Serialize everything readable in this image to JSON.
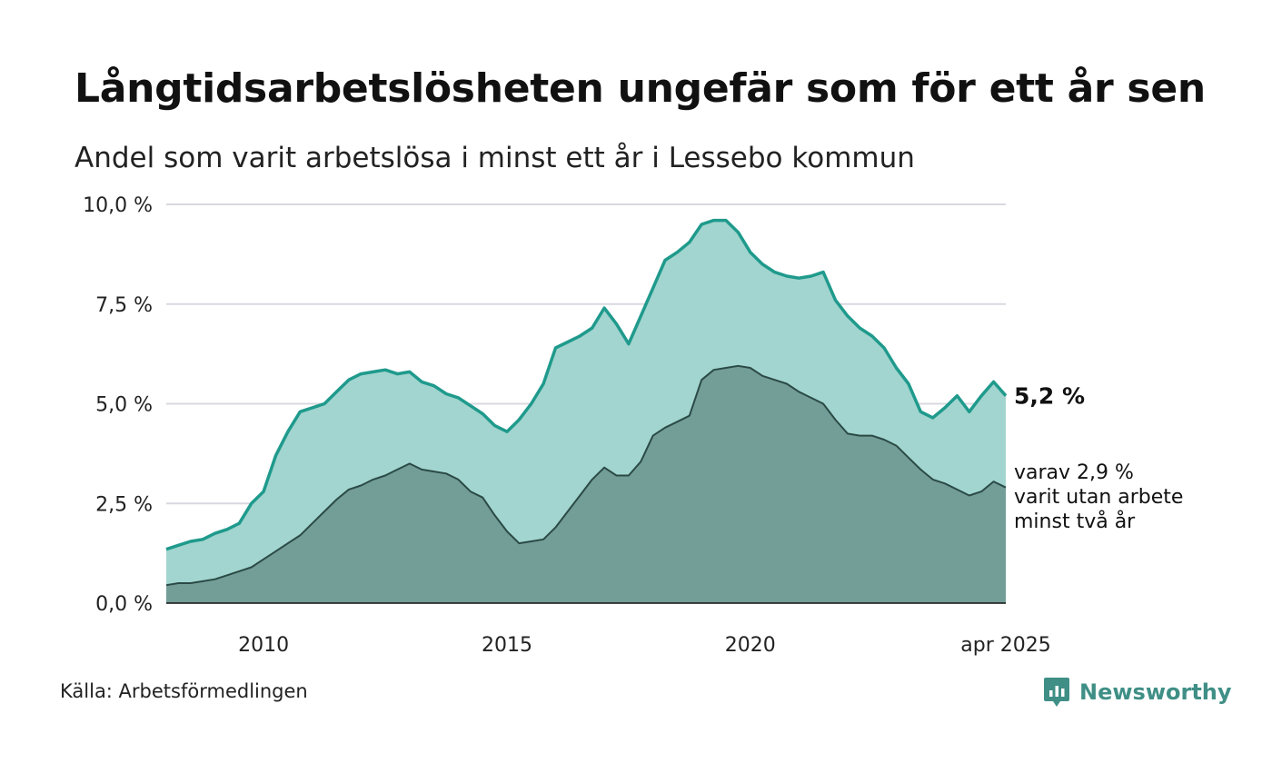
{
  "header": {
    "title": "Långtidsarbetslösheten ungefär som för ett år sen",
    "subtitle": "Andel som varit arbetslösa i minst ett år i Lessebo kommun"
  },
  "footer": {
    "source": "Källa: Arbetsförmedlingen",
    "brand": "Newsworthy",
    "brand_icon": "newsworthy-chart-bubble-icon"
  },
  "colors": {
    "outer_line": "#1f9a8c",
    "outer_fill": "#a2d5cf",
    "inner_line": "#2b4a46",
    "inner_fill": "#739e98",
    "grid": "#d8d8e0",
    "brand": "#3f8f86"
  },
  "chart_data": {
    "type": "area",
    "x_unit": "year",
    "xlim": [
      2008.0,
      2025.25
    ],
    "ylim": [
      0,
      10
    ],
    "grid": true,
    "y_ticks": [
      {
        "value": 0,
        "label": "0,0 %"
      },
      {
        "value": 2.5,
        "label": "2,5 %"
      },
      {
        "value": 5,
        "label": "5,0 %"
      },
      {
        "value": 7.5,
        "label": "7,5 %"
      },
      {
        "value": 10,
        "label": "10,0 %"
      }
    ],
    "x_ticks": [
      {
        "value": 2010,
        "label": "2010"
      },
      {
        "value": 2015,
        "label": "2015"
      },
      {
        "value": 2020,
        "label": "2020"
      },
      {
        "value": 2025.25,
        "label": "apr 2025"
      }
    ],
    "series": [
      {
        "id": "minst-ett-ar",
        "end_label": "5,2 %",
        "points": [
          [
            2008.0,
            1.35
          ],
          [
            2008.25,
            1.45
          ],
          [
            2008.5,
            1.55
          ],
          [
            2008.75,
            1.6
          ],
          [
            2009.0,
            1.75
          ],
          [
            2009.25,
            1.85
          ],
          [
            2009.5,
            2.0
          ],
          [
            2009.75,
            2.5
          ],
          [
            2010.0,
            2.8
          ],
          [
            2010.25,
            3.7
          ],
          [
            2010.5,
            4.3
          ],
          [
            2010.75,
            4.8
          ],
          [
            2011.0,
            4.9
          ],
          [
            2011.25,
            5.0
          ],
          [
            2011.5,
            5.3
          ],
          [
            2011.75,
            5.6
          ],
          [
            2012.0,
            5.75
          ],
          [
            2012.25,
            5.8
          ],
          [
            2012.5,
            5.85
          ],
          [
            2012.75,
            5.75
          ],
          [
            2013.0,
            5.8
          ],
          [
            2013.25,
            5.55
          ],
          [
            2013.5,
            5.45
          ],
          [
            2013.75,
            5.25
          ],
          [
            2014.0,
            5.15
          ],
          [
            2014.25,
            4.95
          ],
          [
            2014.5,
            4.75
          ],
          [
            2014.75,
            4.45
          ],
          [
            2015.0,
            4.3
          ],
          [
            2015.25,
            4.6
          ],
          [
            2015.5,
            5.0
          ],
          [
            2015.75,
            5.5
          ],
          [
            2016.0,
            6.4
          ],
          [
            2016.25,
            6.55
          ],
          [
            2016.5,
            6.7
          ],
          [
            2016.75,
            6.9
          ],
          [
            2017.0,
            7.4
          ],
          [
            2017.25,
            7.0
          ],
          [
            2017.5,
            6.5
          ],
          [
            2017.75,
            7.2
          ],
          [
            2018.0,
            7.9
          ],
          [
            2018.25,
            8.6
          ],
          [
            2018.5,
            8.8
          ],
          [
            2018.75,
            9.05
          ],
          [
            2019.0,
            9.5
          ],
          [
            2019.25,
            9.6
          ],
          [
            2019.5,
            9.6
          ],
          [
            2019.75,
            9.3
          ],
          [
            2020.0,
            8.8
          ],
          [
            2020.25,
            8.5
          ],
          [
            2020.5,
            8.3
          ],
          [
            2020.75,
            8.2
          ],
          [
            2021.0,
            8.15
          ],
          [
            2021.25,
            8.2
          ],
          [
            2021.5,
            8.3
          ],
          [
            2021.75,
            7.6
          ],
          [
            2022.0,
            7.2
          ],
          [
            2022.25,
            6.9
          ],
          [
            2022.5,
            6.7
          ],
          [
            2022.75,
            6.4
          ],
          [
            2023.0,
            5.9
          ],
          [
            2023.25,
            5.5
          ],
          [
            2023.5,
            4.8
          ],
          [
            2023.75,
            4.65
          ],
          [
            2024.0,
            4.9
          ],
          [
            2024.25,
            5.2
          ],
          [
            2024.5,
            4.8
          ],
          [
            2024.75,
            5.2
          ],
          [
            2025.0,
            5.55
          ],
          [
            2025.25,
            5.2
          ]
        ]
      },
      {
        "id": "minst-tva-ar",
        "end_label": "varav 2,9 %\nvarit utan arbete\nminst två år",
        "points": [
          [
            2008.0,
            0.45
          ],
          [
            2008.25,
            0.5
          ],
          [
            2008.5,
            0.5
          ],
          [
            2008.75,
            0.55
          ],
          [
            2009.0,
            0.6
          ],
          [
            2009.25,
            0.7
          ],
          [
            2009.5,
            0.8
          ],
          [
            2009.75,
            0.9
          ],
          [
            2010.0,
            1.1
          ],
          [
            2010.25,
            1.3
          ],
          [
            2010.5,
            1.5
          ],
          [
            2010.75,
            1.7
          ],
          [
            2011.0,
            2.0
          ],
          [
            2011.25,
            2.3
          ],
          [
            2011.5,
            2.6
          ],
          [
            2011.75,
            2.85
          ],
          [
            2012.0,
            2.95
          ],
          [
            2012.25,
            3.1
          ],
          [
            2012.5,
            3.2
          ],
          [
            2012.75,
            3.35
          ],
          [
            2013.0,
            3.5
          ],
          [
            2013.25,
            3.35
          ],
          [
            2013.5,
            3.3
          ],
          [
            2013.75,
            3.25
          ],
          [
            2014.0,
            3.1
          ],
          [
            2014.25,
            2.8
          ],
          [
            2014.5,
            2.65
          ],
          [
            2014.75,
            2.2
          ],
          [
            2015.0,
            1.8
          ],
          [
            2015.25,
            1.5
          ],
          [
            2015.5,
            1.55
          ],
          [
            2015.75,
            1.6
          ],
          [
            2016.0,
            1.9
          ],
          [
            2016.25,
            2.3
          ],
          [
            2016.5,
            2.7
          ],
          [
            2016.75,
            3.1
          ],
          [
            2017.0,
            3.4
          ],
          [
            2017.25,
            3.2
          ],
          [
            2017.5,
            3.2
          ],
          [
            2017.75,
            3.55
          ],
          [
            2018.0,
            4.2
          ],
          [
            2018.25,
            4.4
          ],
          [
            2018.5,
            4.55
          ],
          [
            2018.75,
            4.7
          ],
          [
            2019.0,
            5.6
          ],
          [
            2019.25,
            5.85
          ],
          [
            2019.5,
            5.9
          ],
          [
            2019.75,
            5.95
          ],
          [
            2020.0,
            5.9
          ],
          [
            2020.25,
            5.7
          ],
          [
            2020.5,
            5.6
          ],
          [
            2020.75,
            5.5
          ],
          [
            2021.0,
            5.3
          ],
          [
            2021.25,
            5.15
          ],
          [
            2021.5,
            5.0
          ],
          [
            2021.75,
            4.6
          ],
          [
            2022.0,
            4.25
          ],
          [
            2022.25,
            4.2
          ],
          [
            2022.5,
            4.2
          ],
          [
            2022.75,
            4.1
          ],
          [
            2023.0,
            3.95
          ],
          [
            2023.25,
            3.65
          ],
          [
            2023.5,
            3.35
          ],
          [
            2023.75,
            3.1
          ],
          [
            2024.0,
            3.0
          ],
          [
            2024.25,
            2.85
          ],
          [
            2024.5,
            2.7
          ],
          [
            2024.75,
            2.8
          ],
          [
            2025.0,
            3.05
          ],
          [
            2025.25,
            2.9
          ]
        ]
      }
    ]
  }
}
